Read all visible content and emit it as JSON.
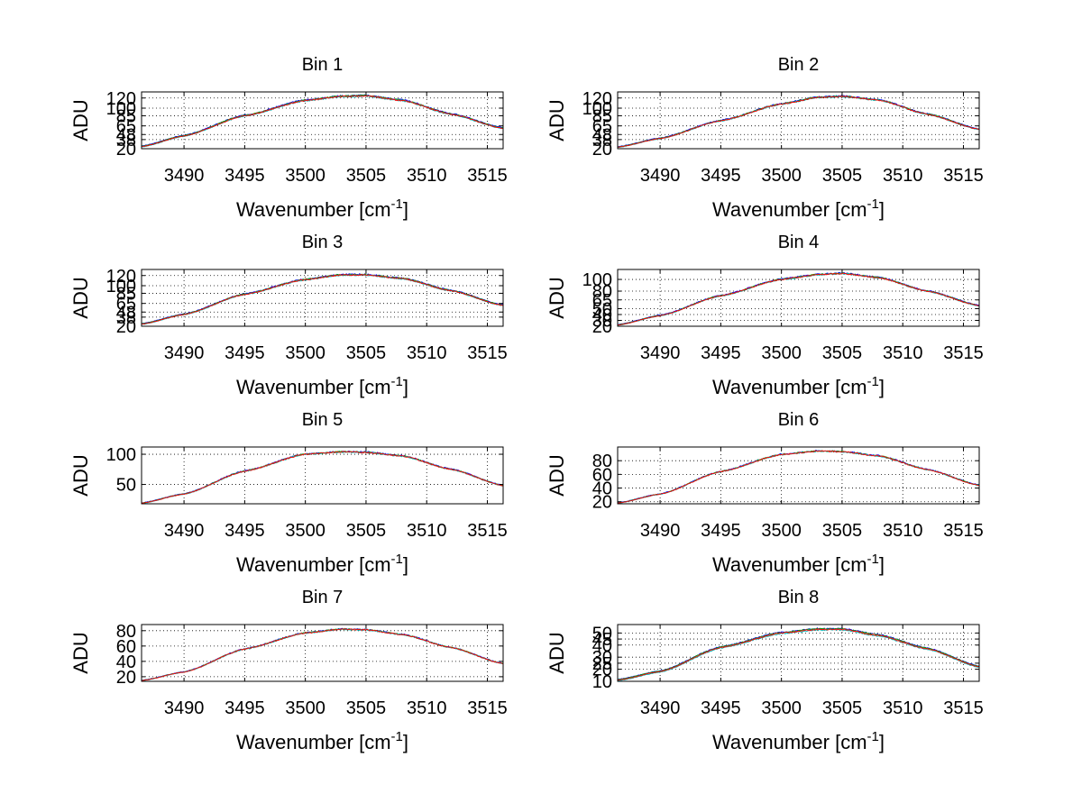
{
  "chart_data": [
    {
      "type": "line",
      "title": "Bin 1",
      "xlabel": "Wavenumber [cm",
      "xlabel_sup": "-1",
      "xlabel_suffix": "]",
      "ylabel": "ADU",
      "xlim": [
        3486.5,
        3516.3
      ],
      "ylim": [
        20,
        132
      ],
      "xticks": [
        3490,
        3495,
        3500,
        3505,
        3510,
        3515
      ],
      "yticks": [
        20,
        38,
        48,
        65,
        85,
        100,
        120
      ],
      "grid": true,
      "curve": {
        "x": [
          3486.5,
          3490,
          3495,
          3500,
          3503,
          3505,
          3508,
          3512,
          3516.3
        ],
        "y": [
          24,
          45,
          85,
          115,
          123,
          124,
          115,
          88,
          60
        ]
      },
      "series": [
        {
          "name": "",
          "color": "#0000ff",
          "offset": 1.5
        },
        {
          "name": "",
          "color": "#00aa00",
          "offset": 0.8
        },
        {
          "name": "",
          "color": "#00bfbf",
          "offset": -0.6
        },
        {
          "name": "",
          "color": "#ff0000",
          "offset": 0
        }
      ]
    },
    {
      "type": "line",
      "title": "Bin 2",
      "xlabel": "Wavenumber [cm",
      "xlabel_sup": "-1",
      "xlabel_suffix": "]",
      "ylabel": "ADU",
      "xlim": [
        3486.5,
        3516.3
      ],
      "ylim": [
        20,
        132
      ],
      "xticks": [
        3490,
        3495,
        3500,
        3505,
        3510,
        3515
      ],
      "yticks": [
        20,
        38,
        48,
        65,
        85,
        100,
        120
      ],
      "grid": true,
      "curve": {
        "x": [
          3486.5,
          3490,
          3495,
          3500,
          3503,
          3505,
          3508,
          3512,
          3516.3
        ],
        "y": [
          23,
          40,
          75,
          108,
          121,
          123,
          116,
          88,
          58
        ]
      },
      "series": [
        {
          "name": "",
          "color": "#0000ff",
          "offset": 1.2
        },
        {
          "name": "",
          "color": "#00aa00",
          "offset": 0.6
        },
        {
          "name": "",
          "color": "#00bfbf",
          "offset": -0.5
        },
        {
          "name": "",
          "color": "#ff0000",
          "offset": 0
        }
      ]
    },
    {
      "type": "line",
      "title": "Bin 3",
      "xlabel": "Wavenumber [cm",
      "xlabel_sup": "-1",
      "xlabel_suffix": "]",
      "ylabel": "ADU",
      "xlim": [
        3486.5,
        3516.3
      ],
      "ylim": [
        20,
        132
      ],
      "xticks": [
        3490,
        3495,
        3500,
        3505,
        3510,
        3515
      ],
      "yticks": [
        20,
        38,
        48,
        65,
        85,
        100,
        120
      ],
      "grid": true,
      "curve": {
        "x": [
          3486.5,
          3490,
          3495,
          3500,
          3503,
          3505,
          3508,
          3512,
          3516.3
        ],
        "y": [
          24,
          43,
          83,
          112,
          121,
          121,
          114,
          90,
          61
        ]
      },
      "series": [
        {
          "name": "",
          "color": "#0000ff",
          "offset": 1.3
        },
        {
          "name": "",
          "color": "#00aa00",
          "offset": 0.7
        },
        {
          "name": "",
          "color": "#00bfbf",
          "offset": -0.5
        },
        {
          "name": "",
          "color": "#ff0000",
          "offset": 0
        }
      ]
    },
    {
      "type": "line",
      "title": "Bin 4",
      "xlabel": "Wavenumber [cm",
      "xlabel_sup": "-1",
      "xlabel_suffix": "]",
      "ylabel": "ADU",
      "xlim": [
        3486.5,
        3516.3
      ],
      "ylim": [
        20,
        117
      ],
      "xticks": [
        3490,
        3495,
        3500,
        3505,
        3510,
        3515
      ],
      "yticks": [
        20,
        30,
        40,
        50,
        65,
        80,
        100
      ],
      "grid": true,
      "curve": {
        "x": [
          3486.5,
          3490,
          3495,
          3500,
          3503,
          3505,
          3508,
          3512,
          3516.3
        ],
        "y": [
          22,
          38,
          72,
          100,
          108,
          110,
          103,
          80,
          55
        ]
      },
      "series": [
        {
          "name": "",
          "color": "#0000ff",
          "offset": 1.1
        },
        {
          "name": "",
          "color": "#00aa00",
          "offset": 0.5
        },
        {
          "name": "",
          "color": "#00bfbf",
          "offset": -0.4
        },
        {
          "name": "",
          "color": "#ff0000",
          "offset": 0
        }
      ]
    },
    {
      "type": "line",
      "title": "Bin 5",
      "xlabel": "Wavenumber [cm",
      "xlabel_sup": "-1",
      "xlabel_suffix": "]",
      "ylabel": "ADU",
      "xlim": [
        3486.5,
        3516.3
      ],
      "ylim": [
        18,
        112
      ],
      "xticks": [
        3490,
        3495,
        3500,
        3505,
        3510,
        3515
      ],
      "yticks": [
        50,
        100
      ],
      "grid": true,
      "curve": {
        "x": [
          3486.5,
          3490,
          3495,
          3500,
          3503,
          3505,
          3508,
          3512,
          3516.3
        ],
        "y": [
          19,
          34,
          72,
          100,
          104,
          103,
          97,
          75,
          48
        ]
      },
      "series": [
        {
          "name": "",
          "color": "#0000ff",
          "offset": 0.9
        },
        {
          "name": "",
          "color": "#00aa00",
          "offset": 0.4
        },
        {
          "name": "",
          "color": "#00bfbf",
          "offset": -0.4
        },
        {
          "name": "",
          "color": "#ff0000",
          "offset": 0
        }
      ]
    },
    {
      "type": "line",
      "title": "Bin 6",
      "xlabel": "Wavenumber [cm",
      "xlabel_sup": "-1",
      "xlabel_suffix": "]",
      "ylabel": "ADU",
      "xlim": [
        3486.5,
        3516.3
      ],
      "ylim": [
        17,
        100
      ],
      "xticks": [
        3490,
        3495,
        3500,
        3505,
        3510,
        3515
      ],
      "yticks": [
        20,
        40,
        60,
        80
      ],
      "grid": true,
      "curve": {
        "x": [
          3486.5,
          3490,
          3495,
          3500,
          3503,
          3505,
          3508,
          3512,
          3516.3
        ],
        "y": [
          18,
          31,
          64,
          89,
          94,
          93,
          87,
          67,
          44
        ]
      },
      "series": [
        {
          "name": "",
          "color": "#0000ff",
          "offset": 0.8
        },
        {
          "name": "",
          "color": "#00aa00",
          "offset": 0.4
        },
        {
          "name": "",
          "color": "#00bfbf",
          "offset": -0.3
        },
        {
          "name": "",
          "color": "#ff0000",
          "offset": 0
        }
      ]
    },
    {
      "type": "line",
      "title": "Bin 7",
      "xlabel": "Wavenumber [cm",
      "xlabel_sup": "-1",
      "xlabel_suffix": "]",
      "ylabel": "ADU",
      "xlim": [
        3486.5,
        3516.3
      ],
      "ylim": [
        14,
        88
      ],
      "xticks": [
        3490,
        3495,
        3500,
        3505,
        3510,
        3515
      ],
      "yticks": [
        20,
        40,
        60,
        80
      ],
      "grid": true,
      "curve": {
        "x": [
          3486.5,
          3490,
          3495,
          3500,
          3503,
          3505,
          3508,
          3512,
          3516.3
        ],
        "y": [
          15,
          26,
          56,
          77,
          82,
          81,
          75,
          58,
          37
        ]
      },
      "series": [
        {
          "name": "",
          "color": "#0000ff",
          "offset": 0.7
        },
        {
          "name": "",
          "color": "#00aa00",
          "offset": 0.3
        },
        {
          "name": "",
          "color": "#00bfbf",
          "offset": -0.3
        },
        {
          "name": "",
          "color": "#ff0000",
          "offset": 0
        }
      ]
    },
    {
      "type": "line",
      "title": "Bin 8",
      "xlabel": "Wavenumber [cm",
      "xlabel_sup": "-1",
      "xlabel_suffix": "]",
      "ylabel": "ADU",
      "xlim": [
        3486.5,
        3516.3
      ],
      "ylim": [
        10,
        57
      ],
      "xticks": [
        3490,
        3495,
        3500,
        3505,
        3510,
        3515
      ],
      "yticks": [
        10,
        20,
        25,
        30,
        40,
        45,
        50
      ],
      "grid": true,
      "curve": {
        "x": [
          3486.5,
          3490,
          3495,
          3500,
          3503,
          3505,
          3508,
          3512,
          3516.3
        ],
        "y": [
          11,
          18,
          38,
          50,
          53,
          53,
          48,
          37,
          22
        ]
      },
      "series": [
        {
          "name": "",
          "color": "#0000ff",
          "offset": 1.6
        },
        {
          "name": "",
          "color": "#00aa00",
          "offset": 1.0
        },
        {
          "name": "",
          "color": "#00bfbf",
          "offset": -1.2
        },
        {
          "name": "",
          "color": "#ff0000",
          "offset": 0
        }
      ]
    }
  ]
}
